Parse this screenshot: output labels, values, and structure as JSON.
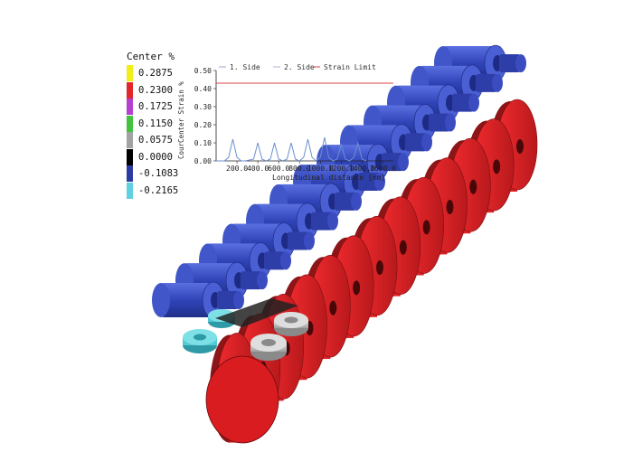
{
  "legend": {
    "title": "Center  %",
    "items": [
      {
        "value": "0.2875",
        "color": "#f2ee1a"
      },
      {
        "value": "0.2300",
        "color": "#e3262a"
      },
      {
        "value": "0.1725",
        "color": "#b43fd0"
      },
      {
        "value": "0.1150",
        "color": "#43c23d"
      },
      {
        "value": "0.0575",
        "color": "#a3a3a3"
      },
      {
        "value": "0.0000",
        "color": "#000000"
      },
      {
        "value": "-0.1083",
        "color": "#2a3ca3"
      },
      {
        "value": "-0.2165",
        "color": "#5fd0df"
      }
    ]
  },
  "colors": {
    "roller_top": "#2d3ea8",
    "roller_top_light": "#4156c8",
    "roller_bottom": "#e01f23",
    "roller_bottom_dark": "#8c1517",
    "side_cyan": "#52c9d3",
    "side_gray": "#b9b9b9"
  },
  "chart_data": {
    "type": "line",
    "legend_entries": [
      "1. Side",
      "2. Side",
      "Strain Limit"
    ],
    "ylabel": "CourCenter Strain  %",
    "xlabel": "Longitudinal distance [mm]",
    "yticks": [
      "0.50",
      "0.40",
      "0.30",
      "0.20",
      "0.10",
      "0.00"
    ],
    "xticks": [
      "200.0",
      "400.0",
      "600.0",
      "800.0",
      "1000.0",
      "1200.0",
      "1400.0",
      "1600.0"
    ],
    "ylim": [
      0,
      0.5
    ],
    "xlim": [
      0,
      1700
    ],
    "series": [
      {
        "name": "Strain Limit",
        "color": "#d9464a",
        "x": [
          0,
          1700
        ],
        "y": [
          0.43,
          0.43
        ]
      },
      {
        "name": "1. Side",
        "color": "#6a8fd0",
        "x": [
          0,
          80,
          120,
          160,
          200,
          240,
          280,
          360,
          400,
          440,
          480,
          520,
          560,
          600,
          640,
          680,
          720,
          760,
          800,
          840,
          880,
          920,
          960,
          1000,
          1040,
          1080,
          1120,
          1160,
          1200,
          1240,
          1280,
          1320,
          1360,
          1400,
          1440
        ],
        "y": [
          0,
          0,
          0.02,
          0.12,
          0.02,
          0,
          0,
          0.01,
          0.1,
          0.01,
          0,
          0.01,
          0.1,
          0.01,
          0,
          0.01,
          0.1,
          0.01,
          0,
          0.02,
          0.12,
          0.02,
          0,
          0.02,
          0.13,
          0.02,
          0,
          0.01,
          0.09,
          0.01,
          0,
          0.02,
          0.1,
          0.01,
          0
        ]
      }
    ]
  }
}
